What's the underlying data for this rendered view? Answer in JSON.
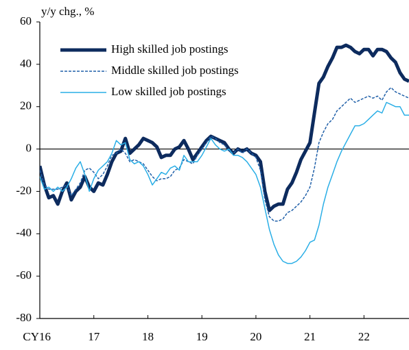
{
  "chart_data": {
    "type": "line",
    "y_label": "y/y chg., %",
    "categories": [
      "CY16",
      null,
      null,
      null,
      null,
      null,
      null,
      null,
      null,
      null,
      null,
      null,
      "17",
      null,
      null,
      null,
      null,
      null,
      null,
      null,
      null,
      null,
      null,
      null,
      "18",
      null,
      null,
      null,
      null,
      null,
      null,
      null,
      null,
      null,
      null,
      null,
      "19",
      null,
      null,
      null,
      null,
      null,
      null,
      null,
      null,
      null,
      null,
      null,
      "20",
      null,
      null,
      null,
      null,
      null,
      null,
      null,
      null,
      null,
      null,
      null,
      "21",
      null,
      null,
      null,
      null,
      null,
      null,
      null,
      null,
      null,
      null,
      null,
      "22",
      null,
      null,
      null,
      null,
      null,
      null,
      null,
      null,
      null,
      null
    ],
    "ylim": [
      -80,
      60
    ],
    "yticks": [
      -80,
      -60,
      -40,
      -20,
      0,
      20,
      40,
      60
    ],
    "series": [
      {
        "name": "High skilled job postings",
        "color": "#0d2b5e",
        "values": [
          -8,
          -17,
          -23,
          -22,
          -26,
          -20,
          -16,
          -24,
          -20,
          -18,
          -13,
          -18,
          -20,
          -16,
          -17,
          -12,
          -6,
          -2,
          -1,
          5,
          -2,
          0,
          2,
          5,
          4,
          3,
          1,
          -4,
          -3,
          -3,
          0,
          1,
          4,
          0,
          -5,
          -2,
          1,
          4,
          6,
          5,
          4,
          3,
          0,
          -2,
          0,
          -1,
          0,
          -2,
          -3,
          -6,
          -20,
          -29,
          -27,
          -26,
          -26,
          -19,
          -16,
          -11,
          -5,
          -1,
          3,
          17,
          31,
          34,
          39,
          43,
          48,
          48,
          49,
          48,
          46,
          45,
          47,
          47,
          44,
          47,
          47,
          46,
          43,
          41,
          36,
          33,
          32
        ]
      },
      {
        "name": "Middle skilled job postings",
        "color": "#1f5fa8",
        "dash": true,
        "values": [
          -10,
          -17,
          -19,
          -19,
          -19,
          -18,
          -17,
          -22,
          -19,
          -16,
          -10,
          -9,
          -11,
          -14,
          -12,
          -8,
          -3,
          -2,
          0,
          -2,
          -6,
          -5,
          -6,
          -7,
          -10,
          -13,
          -15,
          -14,
          -14,
          -13,
          -10,
          -9,
          -5,
          -6,
          -7,
          -3,
          0,
          3,
          6,
          5,
          3,
          2,
          -1,
          -2,
          0,
          -2,
          0,
          -2,
          -4,
          -10,
          -24,
          -32,
          -34,
          -34,
          -33,
          -30,
          -29,
          -27,
          -25,
          -22,
          -18,
          -9,
          3,
          8,
          12,
          14,
          18,
          20,
          22,
          24,
          22,
          23,
          24,
          25,
          24,
          25,
          23,
          27,
          29,
          27,
          26,
          25,
          24
        ]
      },
      {
        "name": "Low skilled job postings",
        "color": "#29aee6",
        "values": [
          -13,
          -19,
          -18,
          -20,
          -18,
          -20,
          -18,
          -14,
          -9,
          -6,
          -12,
          -20,
          -14,
          -10,
          -8,
          -6,
          -2,
          4,
          2,
          3,
          -5,
          -7,
          -6,
          -8,
          -12,
          -17,
          -14,
          -11,
          -12,
          -9,
          -8,
          -10,
          -3,
          -6,
          -6,
          -6,
          -3,
          1,
          5,
          2,
          0,
          -1,
          0,
          -3,
          -3,
          -4,
          -6,
          -9,
          -12,
          -18,
          -28,
          -38,
          -45,
          -50,
          -53,
          -54,
          -54,
          -53,
          -51,
          -48,
          -44,
          -43,
          -36,
          -26,
          -18,
          -12,
          -6,
          -1,
          3,
          7,
          11,
          11,
          12,
          14,
          16,
          18,
          17,
          22,
          21,
          20,
          20,
          16,
          16
        ]
      }
    ]
  }
}
